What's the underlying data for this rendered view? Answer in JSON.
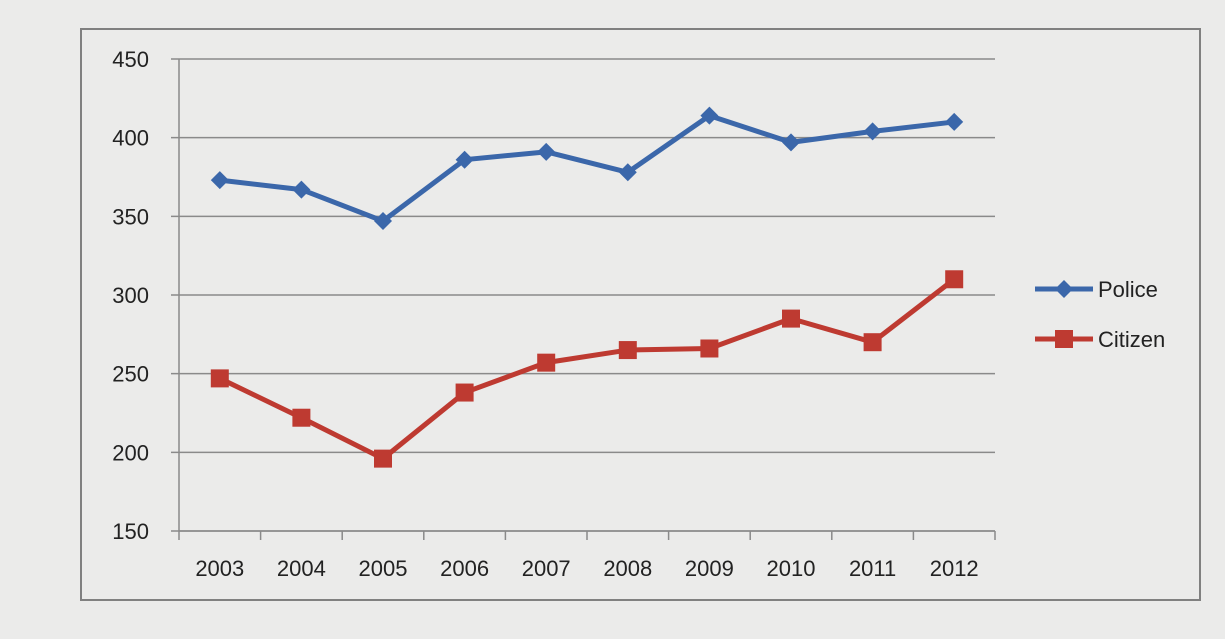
{
  "chart_data": {
    "type": "line",
    "title": "",
    "xlabel": "",
    "ylabel": "",
    "categories": [
      "2003",
      "2004",
      "2005",
      "2006",
      "2007",
      "2008",
      "2009",
      "2010",
      "2011",
      "2012"
    ],
    "series": [
      {
        "name": "Police",
        "marker": "diamond",
        "color": "#3b67aa",
        "values": [
          373,
          367,
          347,
          386,
          391,
          378,
          414,
          397,
          404,
          410
        ]
      },
      {
        "name": "Citizen",
        "marker": "square",
        "color": "#be3a31",
        "values": [
          247,
          222,
          196,
          238,
          257,
          265,
          266,
          285,
          270,
          310
        ]
      }
    ],
    "ylim": [
      150,
      450
    ],
    "yticks": [
      150,
      200,
      250,
      300,
      350,
      400,
      450
    ],
    "grid": true,
    "legend_position": "right"
  }
}
